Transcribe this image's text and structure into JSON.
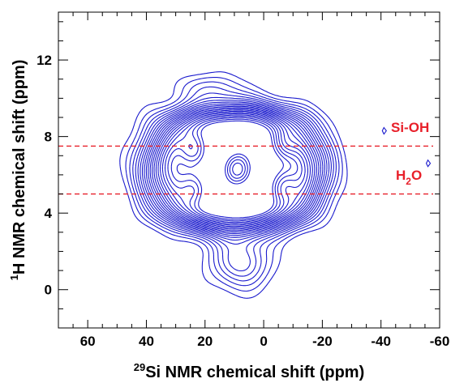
{
  "chart_data": {
    "type": "contour",
    "xlabel": {
      "sup": "29",
      "text": "Si NMR chemical shift (ppm)"
    },
    "ylabel": {
      "sup": "1",
      "text": "H NMR chemical shift (ppm)"
    },
    "xlim": [
      70,
      -60
    ],
    "ylim": [
      -2,
      14.5
    ],
    "x_ticks": [
      60,
      40,
      20,
      0,
      -20,
      -40,
      -60
    ],
    "x_tick_labels": [
      "60",
      "40",
      "20",
      "0",
      "-20",
      "-40",
      "-60"
    ],
    "y_ticks": [
      0,
      4,
      8,
      12
    ],
    "y_tick_labels": [
      "0",
      "4",
      "8",
      "12"
    ],
    "reference_lines": [
      {
        "y": 7.5,
        "label": "Si-OH"
      },
      {
        "y": 5.0,
        "label_main": "H",
        "label_sub": "2",
        "label_end": "O"
      }
    ],
    "contour_color": "#1a1acd",
    "reference_color": "#e8202a",
    "contour_level_count": 22,
    "peaks": [
      {
        "x": 24,
        "y": 7.3
      },
      {
        "x": 9,
        "y": 6.3
      },
      {
        "x": -7,
        "y": 7.6
      },
      {
        "x": -7,
        "y": 5.4
      },
      {
        "x": 24,
        "y": 5.2
      }
    ],
    "markers": [
      {
        "x": -41,
        "y": 8.3
      },
      {
        "x": -56,
        "y": 6.6
      }
    ]
  }
}
